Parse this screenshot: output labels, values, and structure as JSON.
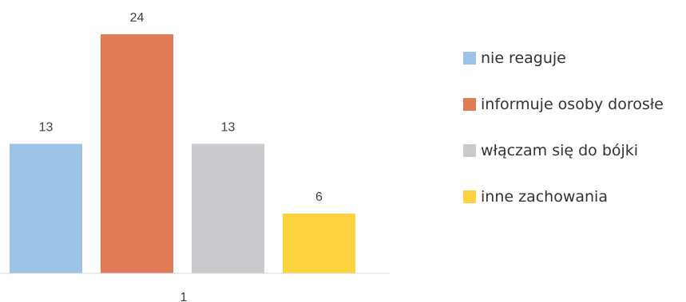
{
  "chart_data": {
    "type": "bar",
    "categories": [
      "1"
    ],
    "series": [
      {
        "name": "nie reaguje",
        "values": [
          13
        ],
        "color": "#9DC3E6"
      },
      {
        "name": "informuje osoby dorosłe",
        "values": [
          24
        ],
        "color": "#E07B56"
      },
      {
        "name": "włączam się do bójki",
        "values": [
          13
        ],
        "color": "#C9C9CE"
      },
      {
        "name": "inne zachowania",
        "values": [
          6
        ],
        "color": "#FFD23F"
      }
    ],
    "ylim": [
      0,
      24
    ],
    "grid": false,
    "legend_position": "right"
  }
}
